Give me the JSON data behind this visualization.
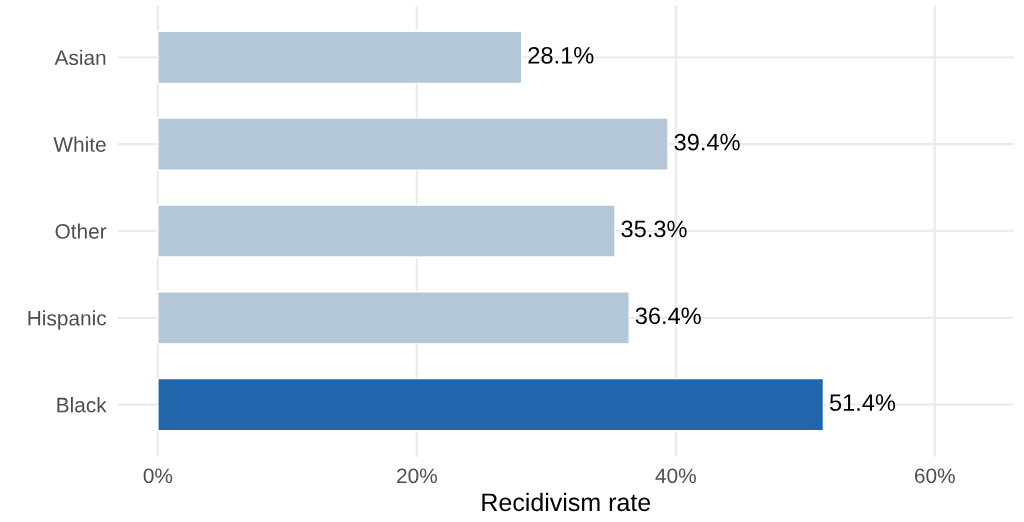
{
  "chart_data": {
    "type": "bar",
    "orientation": "horizontal",
    "xlabel": "Recidivism rate",
    "categories": [
      "Asian",
      "White",
      "Other",
      "Hispanic",
      "Black"
    ],
    "values": [
      28.1,
      39.4,
      35.3,
      36.4,
      51.4
    ],
    "value_labels": [
      "28.1%",
      "39.4%",
      "35.3%",
      "36.4%",
      "51.4%"
    ],
    "colors": [
      "#b3c7d8",
      "#b3c7d8",
      "#b3c7d8",
      "#b3c7d8",
      "#2166ac"
    ],
    "xlim": [
      -3.1,
      66.1
    ],
    "xticks": [
      {
        "value": 0,
        "label": "0%"
      },
      {
        "value": 20,
        "label": "20%"
      },
      {
        "value": 40,
        "label": "40%"
      },
      {
        "value": 60,
        "label": "60%"
      }
    ],
    "grid": true
  }
}
